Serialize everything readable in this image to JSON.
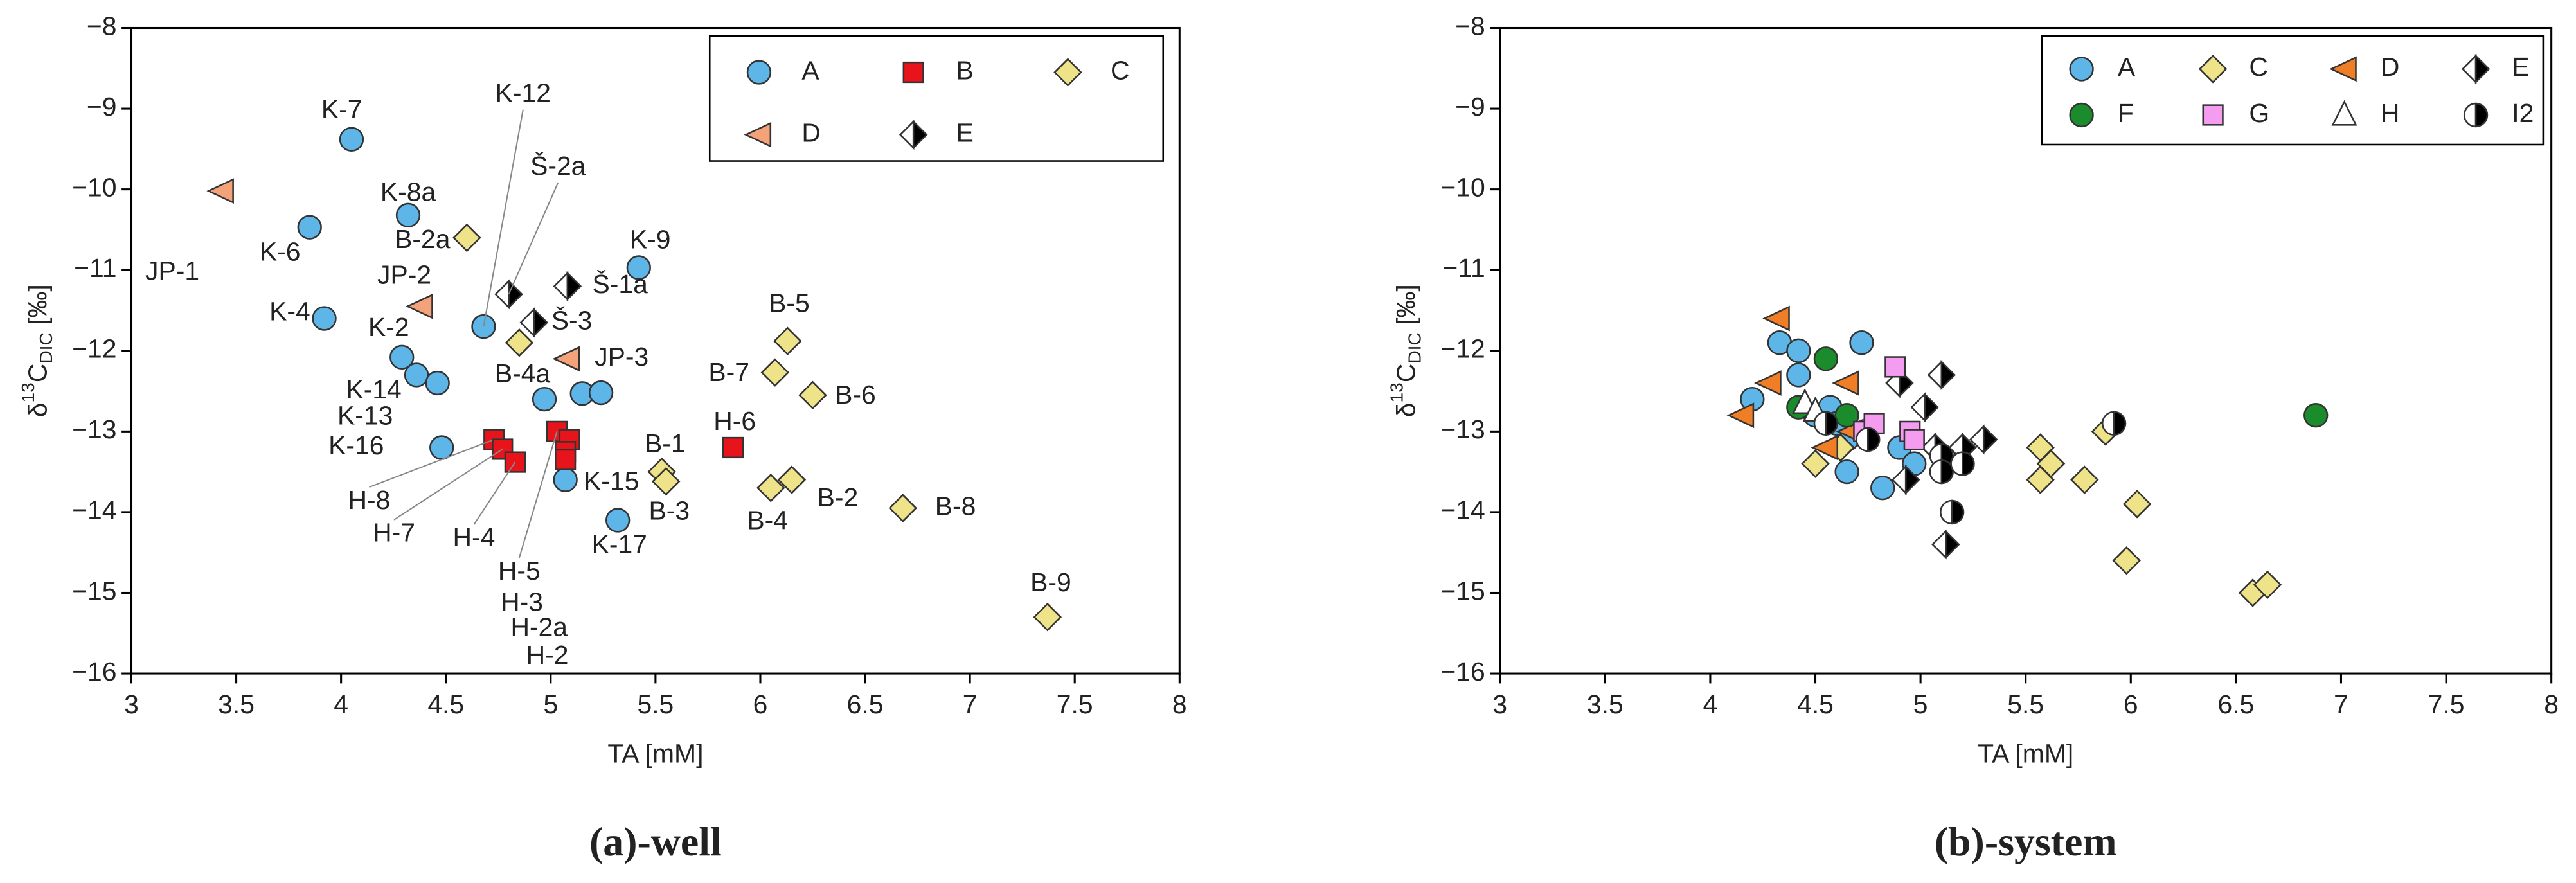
{
  "chart_data": [
    {
      "type": "scatter",
      "caption": "(a)-well",
      "xlabel": "TA [mM]",
      "ylabel": [
        "δ",
        "13",
        "C",
        "DIC",
        " [‰]"
      ],
      "xlim": [
        3,
        8
      ],
      "xticks": [
        3,
        3.5,
        4,
        4.5,
        5,
        5.5,
        6,
        6.5,
        7,
        7.5,
        8
      ],
      "ylim": [
        -16,
        -8
      ],
      "yticks": [
        {
          "value": -8,
          "label": "−8"
        },
        {
          "value": -9,
          "label": "−9"
        },
        {
          "value": -10,
          "label": "−10"
        },
        {
          "value": -11,
          "label": "−11"
        },
        {
          "value": -12,
          "label": "−12"
        },
        {
          "value": -13,
          "label": "−13"
        },
        {
          "value": -14,
          "label": "−14"
        },
        {
          "value": -15,
          "label": "−15"
        },
        {
          "value": -16,
          "label": "−16"
        }
      ],
      "legend_position": "upper right",
      "legend_columns": 3,
      "series": [
        {
          "name": "A",
          "marker": "circle",
          "color": "#5db5e8",
          "x": [
            4.05,
            4.32,
            3.85,
            3.92,
            4.68,
            4.29,
            4.36,
            4.46,
            4.48,
            5.42,
            4.97,
            5.15,
            5.24,
            5.07,
            5.32
          ],
          "values": [
            -9.38,
            -10.32,
            -10.47,
            -11.6,
            -11.7,
            -12.08,
            -12.3,
            -12.4,
            -13.2,
            -10.97,
            -12.6,
            -12.53,
            -12.52,
            -13.6,
            -14.1
          ],
          "labels": [
            "K-7",
            "K-8a",
            "K-6",
            "K-4",
            "K-12",
            "K-2",
            "K-14",
            "K-13",
            "K-16",
            "K-9",
            null,
            null,
            null,
            "K-15",
            "K-17"
          ]
        },
        {
          "name": "B",
          "marker": "square",
          "color": "#e8141b",
          "x": [
            4.73,
            4.77,
            4.83,
            5.03,
            5.09,
            5.07,
            5.07,
            5.87
          ],
          "values": [
            -13.1,
            -13.22,
            -13.38,
            -13.0,
            -13.1,
            -13.25,
            -13.35,
            -13.2
          ],
          "labels": [
            "H-8",
            "H-7",
            "H-4",
            "H-5",
            "H-3",
            "H-2a",
            "H-2",
            "H-6"
          ]
        },
        {
          "name": "C",
          "marker": "diamond",
          "color": "#efe38a",
          "x": [
            4.6,
            4.85,
            6.13,
            6.07,
            6.25,
            5.53,
            5.55,
            6.05,
            6.15,
            6.68,
            7.37
          ],
          "values": [
            -10.6,
            -11.9,
            -11.88,
            -12.27,
            -12.55,
            -13.5,
            -13.62,
            -13.7,
            -13.6,
            -13.95,
            -15.3
          ],
          "labels": [
            "B-2a",
            "B-4a",
            "B-5",
            "B-7",
            "B-6",
            "B-1",
            "B-3",
            "B-4",
            "B-2",
            "B-8",
            "B-9"
          ]
        },
        {
          "name": "D",
          "marker": "triangle-left",
          "color": "#f4a27a",
          "x": [
            3.43,
            4.38,
            5.08
          ],
          "values": [
            -10.02,
            -11.45,
            -12.1
          ],
          "labels": [
            "JP-1",
            "JP-2",
            "JP-3"
          ]
        },
        {
          "name": "E",
          "marker": "half-diamond",
          "color": "#000000",
          "x": [
            4.8,
            5.08,
            4.92
          ],
          "values": [
            -11.3,
            -11.2,
            -11.65
          ],
          "labels": [
            "Š-2a",
            "Š-1a",
            "Š-3"
          ]
        }
      ]
    },
    {
      "type": "scatter",
      "caption": "(b)-system",
      "xlabel": "TA [mM]",
      "ylabel": [
        "δ",
        "13",
        "C",
        "DIC",
        " [‰]"
      ],
      "xlim": [
        3,
        8
      ],
      "xticks": [
        3,
        3.5,
        4,
        4.5,
        5,
        5.5,
        6,
        6.5,
        7,
        7.5,
        8
      ],
      "ylim": [
        -16,
        -8
      ],
      "yticks": [
        {
          "value": -8,
          "label": "−8"
        },
        {
          "value": -9,
          "label": "−9"
        },
        {
          "value": -10,
          "label": "−10"
        },
        {
          "value": -11,
          "label": "−11"
        },
        {
          "value": -12,
          "label": "−12"
        },
        {
          "value": -13,
          "label": "−13"
        },
        {
          "value": -14,
          "label": "−14"
        },
        {
          "value": -15,
          "label": "−15"
        },
        {
          "value": -16,
          "label": "−16"
        }
      ],
      "legend_position": "upper right",
      "legend_columns": 4,
      "series": [
        {
          "name": "A",
          "marker": "circle",
          "color": "#5db5e8",
          "x": [
            4.2,
            4.33,
            4.42,
            4.42,
            4.5,
            4.57,
            4.65,
            4.72,
            4.82,
            4.9,
            4.97,
            4.65,
            4.6
          ],
          "values": [
            -12.6,
            -11.9,
            -12.0,
            -12.3,
            -12.8,
            -12.7,
            -13.5,
            -11.9,
            -13.7,
            -13.2,
            -13.4,
            -13.1,
            -12.9
          ]
        },
        {
          "name": "C",
          "marker": "diamond",
          "color": "#efe38a",
          "x": [
            4.5,
            4.62,
            5.57,
            5.57,
            5.62,
            5.78,
            5.88,
            5.98,
            6.03,
            6.58,
            6.65
          ],
          "values": [
            -13.4,
            -13.2,
            -13.2,
            -13.6,
            -13.4,
            -13.6,
            -13.0,
            -14.6,
            -13.9,
            -15.0,
            -14.9
          ]
        },
        {
          "name": "D",
          "marker": "triangle-left",
          "color": "#f07e26",
          "x": [
            4.15,
            4.32,
            4.28,
            4.55,
            4.65,
            4.67
          ],
          "values": [
            -12.8,
            -11.6,
            -12.4,
            -13.2,
            -12.4,
            -13.0
          ]
        },
        {
          "name": "E",
          "marker": "half-diamond",
          "color": "#000000",
          "x": [
            4.9,
            4.93,
            5.02,
            5.1,
            5.07,
            5.12,
            5.3,
            5.2
          ],
          "values": [
            -12.4,
            -13.6,
            -12.7,
            -12.3,
            -13.2,
            -14.4,
            -13.1,
            -13.2
          ]
        },
        {
          "name": "F",
          "marker": "circle",
          "color": "#1b8c2b",
          "x": [
            4.42,
            4.55,
            4.65,
            6.88
          ],
          "values": [
            -12.7,
            -12.1,
            -12.8,
            -12.8
          ]
        },
        {
          "name": "G",
          "marker": "square",
          "color": "#f39cf0",
          "x": [
            4.73,
            4.78,
            4.88,
            4.95,
            4.97
          ],
          "values": [
            -13.0,
            -12.9,
            -12.2,
            -13.0,
            -13.1
          ]
        },
        {
          "name": "H",
          "marker": "triangle-up",
          "color": "#ffffff",
          "x": [
            4.45,
            4.5
          ],
          "values": [
            -12.65,
            -12.75
          ]
        },
        {
          "name": "I2",
          "marker": "half-circle",
          "color": "#000000",
          "x": [
            4.55,
            4.75,
            5.1,
            5.1,
            5.2,
            5.15,
            5.92
          ],
          "values": [
            -12.9,
            -13.1,
            -13.3,
            -13.5,
            -13.4,
            -14.0,
            -12.9
          ]
        }
      ]
    }
  ]
}
